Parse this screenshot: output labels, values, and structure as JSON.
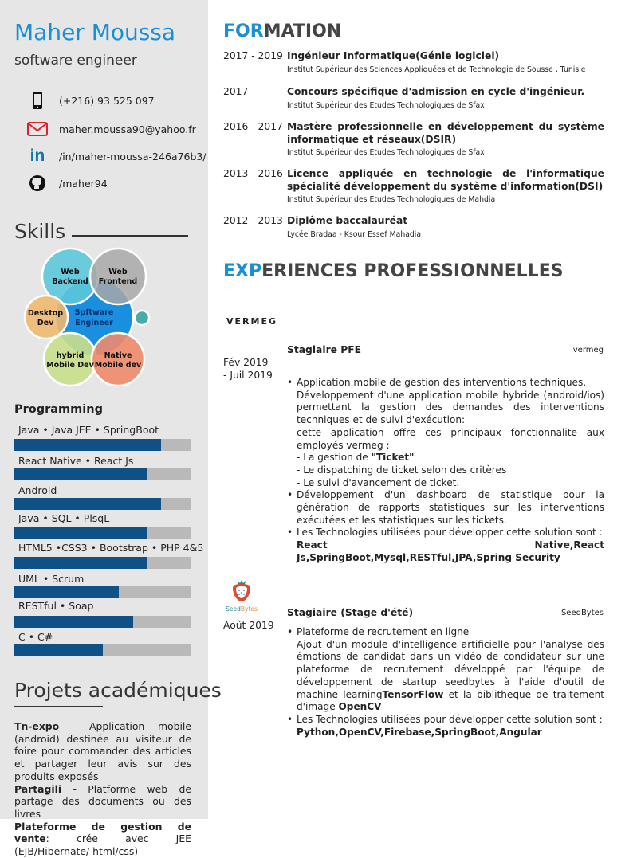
{
  "profile": {
    "name": "Maher Moussa",
    "role": "software engineer"
  },
  "colors": {
    "accent": "#1b8fd5",
    "bar_fill": "#0f5087",
    "bar_track": "#b9b9b9",
    "sidebar_bg": "#e6e6e6"
  },
  "contacts": [
    {
      "icon": "phone-icon",
      "text": "(+216) 93 525 097"
    },
    {
      "icon": "mail-icon",
      "text": "maher.moussa90@yahoo.fr"
    },
    {
      "icon": "linkedin-icon",
      "text": "/in/maher-moussa-246a76b3/"
    },
    {
      "icon": "github-icon",
      "text": "/maher94"
    }
  ],
  "skills": {
    "heading": "Skills",
    "bubbles": {
      "center": [
        "Spftware",
        "Engineer"
      ],
      "web_backend": [
        "Web",
        "Backend"
      ],
      "web_frontend": [
        "Web",
        "Frontend"
      ],
      "desktop": [
        "Desktop",
        "Dev"
      ],
      "hybrid": [
        "hybrid",
        "Mobile Dev"
      ],
      "native": [
        "Native",
        "Mobile dev"
      ]
    }
  },
  "programming": {
    "heading": "Programming",
    "items": [
      {
        "label": "Java  •  Java JEE •  SpringBoot",
        "level": 0.83
      },
      {
        "label": "React Native  •  React Js",
        "level": 0.75
      },
      {
        "label": "Android",
        "level": 0.83
      },
      {
        "label": "Java  •  SQL  •  PlsqL",
        "level": 0.75
      },
      {
        "label": "HTML5  •CSS3  •  Bootstrap  •  PHP 4&5",
        "level": 0.75
      },
      {
        "label": "UML  •  Scrum",
        "level": 0.59
      },
      {
        "label": "RESTful  •  Soap",
        "level": 0.67
      },
      {
        "label": "C  •  C#",
        "level": 0.5
      }
    ]
  },
  "projects": {
    "heading": "Projets académiques",
    "items": [
      {
        "name": "Tn-expo",
        "desc": " - Application mobile (android) destinée au visiteur de foire pour commander des articles et partager leur avis sur des produits exposés"
      },
      {
        "name": "Partagili",
        "desc": " - Platforme web de partage des documents ou des livres"
      },
      {
        "name": "Plateforme de gestion de vente",
        "desc": ": crée avec JEE (EJB/Hibernate/ html/css)"
      }
    ]
  },
  "formation": {
    "heading_accent": "FOR",
    "heading_rest": "MATION",
    "items": [
      {
        "date": "2017 - 2019",
        "title": "Ingénieur Informatique(Génie logiciel)",
        "school": "Institut Supérieur des Sciences Appliquées et de Technologie de Sousse , Tunisie"
      },
      {
        "date": "2017",
        "title": "Concours spécifique d'admission en cycle d'ingénieur.",
        "school": "Institut Supérieur des Etudes Technologiques de Sfax"
      },
      {
        "date": "2016 - 2017",
        "title": "Mastère professionnelle en développement du système informatique et réseaux(DSIR)",
        "school": "Institut Supérieur des Etudes Technologiques de Sfax"
      },
      {
        "date": "2013 - 2016",
        "title": "Licence appliquée en technologie de l'informatique spécialité développement du système d'information(DSI)",
        "school": "Institut Supérieur des Etudes Technologiques de Mahdia"
      },
      {
        "date": "2012 - 2013",
        "title": "Diplôme baccalauréat",
        "school": "Lycée Bradaa - Ksour Essef Mahadia"
      }
    ]
  },
  "experiences": {
    "heading_accent": "EXP",
    "heading_rest": "ERIENCES PROFESSIONNELLES",
    "items": [
      {
        "logo_text": "VERMEG",
        "title": "Stagiaire PFE",
        "company": "vermeg",
        "date": "Fév 2019\n- Juil 2019",
        "bullets": [
          [
            [
              {
                "t": "Application mobile de gestion des interventions techniques."
              }
            ],
            [
              {
                "t": "Développement d'une application mobile hybride (android/ios) permettant la gestion des demandes des interventions techniques et de suivi d'exécution:"
              }
            ],
            [
              {
                "t": "cette application offre ces principaux fonctionnalite aux employés vermeg :"
              }
            ],
            [
              {
                "t": "- La gestion de "
              },
              {
                "t": "\"Ticket\"",
                "b": true
              }
            ],
            [
              {
                "t": "- Le dispatching de ticket selon des critères"
              }
            ],
            [
              {
                "t": "- Le suivi d'avancement de ticket."
              }
            ]
          ],
          [
            [
              {
                "t": "Développement d'un dashboard de statistique pour la génération de rapports statistiques sur les interventions exécutées et les statistiques sur les tickets."
              }
            ]
          ],
          [
            [
              {
                "t": "Les Technologies utilisées pour développer cette solution sont :"
              }
            ],
            [
              {
                "t": "React Native,React Js,SpringBoot,Mysql,RESTful,JPA,Spring Security",
                "b": true
              }
            ]
          ]
        ]
      },
      {
        "logo_text": "SeedBytes",
        "title": "Stagiaire (Stage d'été)",
        "company": "SeedBytes",
        "date": "Août 2019",
        "bullets": [
          [
            [
              {
                "t": "Plateforme de recrutement en ligne"
              }
            ],
            [
              {
                "t": "Ajout d'un module d'intelligence artificielle pour l'analyse des émotions de candidat dans un vidéo de condidateur sur une plateforme de recrutement développé par l'équipe de développement de startup seedbytes à l'aide d'outil de machine learning"
              },
              {
                "t": "TensorFlow",
                "b": true
              },
              {
                "t": " et la biblitheque de traitement d'image "
              },
              {
                "t": "OpenCV",
                "b": true
              }
            ]
          ],
          [
            [
              {
                "t": "Les Technologies utilisées pour développer cette solution sont :"
              }
            ],
            [
              {
                "t": "Python,OpenCV,Firebase,SpringBoot,Angular",
                "b": true
              }
            ]
          ]
        ]
      }
    ]
  }
}
